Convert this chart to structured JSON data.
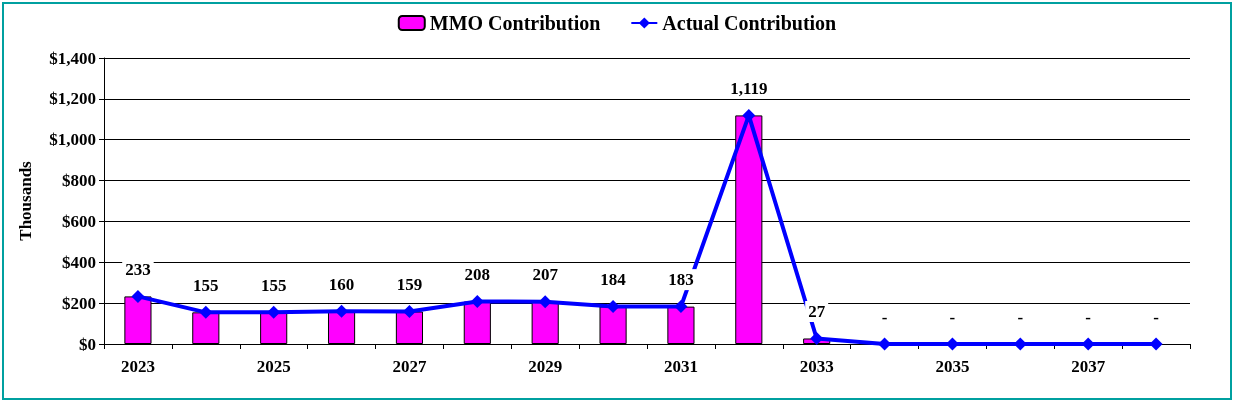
{
  "chart_data": {
    "type": "bar",
    "ylabel": "Thousands",
    "categories": [
      "2023",
      null,
      "2025",
      null,
      "2027",
      null,
      "2029",
      null,
      "2031",
      null,
      "2033",
      null,
      "2035",
      null,
      "2037",
      null
    ],
    "series": [
      {
        "name": "MMO Contribution",
        "color": "#ff00ff",
        "values": [
          233,
          155,
          155,
          160,
          159,
          208,
          207,
          184,
          183,
          1119,
          27,
          0,
          0,
          0,
          0,
          0
        ]
      },
      {
        "name": "Actual Contribution",
        "type": "line",
        "color": "#0000ff",
        "marker": "diamond",
        "values": [
          233,
          155,
          155,
          160,
          159,
          208,
          207,
          184,
          183,
          1119,
          27,
          0,
          0,
          0,
          0,
          0
        ],
        "value_labels": [
          "233",
          "155",
          "155",
          "160",
          "159",
          "208",
          "207",
          "184",
          "183",
          "1,119",
          "27",
          "-",
          "-",
          "-",
          "-",
          "-"
        ]
      }
    ],
    "ylim": [
      0,
      1400
    ],
    "yticks": [
      {
        "value": 0,
        "label": "$0"
      },
      {
        "value": 200,
        "label": "$200"
      },
      {
        "value": 400,
        "label": "$400"
      },
      {
        "value": 600,
        "label": "$600"
      },
      {
        "value": 800,
        "label": "$800"
      },
      {
        "value": 1000,
        "label": "$1,000"
      },
      {
        "value": 1200,
        "label": "$1,200"
      },
      {
        "value": 1400,
        "label": "$1,400"
      }
    ],
    "grid": "y",
    "legend": "top"
  }
}
